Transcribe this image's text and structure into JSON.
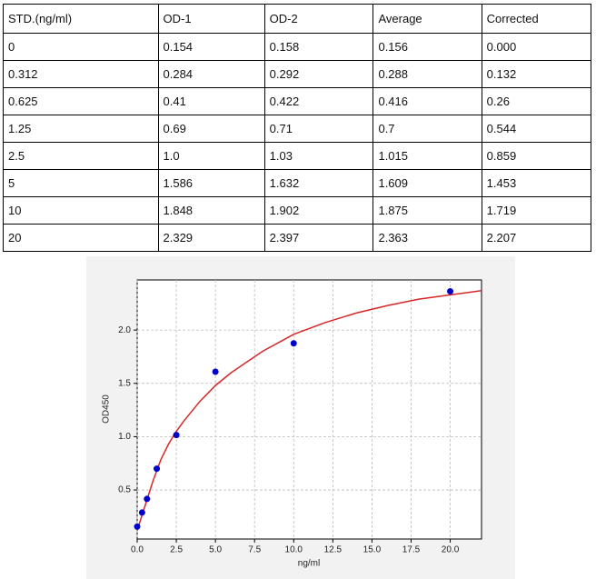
{
  "table": {
    "header": [
      "STD.(ng/ml)",
      "OD-1",
      "OD-2",
      "Average",
      "Corrected"
    ],
    "rows": [
      [
        "0",
        "0.154",
        "0.158",
        "0.156",
        "0.000"
      ],
      [
        "0.312",
        "0.284",
        "0.292",
        "0.288",
        "0.132"
      ],
      [
        "0.625",
        "0.41",
        "0.422",
        "0.416",
        "0.26"
      ],
      [
        "1.25",
        "0.69",
        "0.71",
        "0.7",
        "0.544"
      ],
      [
        "2.5",
        "1.0",
        "1.03",
        "1.015",
        "0.859"
      ],
      [
        "5",
        "1.586",
        "1.632",
        "1.609",
        "1.453"
      ],
      [
        "10",
        "1.848",
        "1.902",
        "1.875",
        "1.719"
      ],
      [
        "20",
        "2.329",
        "2.397",
        "2.363",
        "2.207"
      ]
    ]
  },
  "chart_data": {
    "type": "scatter",
    "x_label": "ng/ml",
    "y_label": "OD450",
    "xlim": [
      0,
      22
    ],
    "ylim": [
      0.04,
      2.47
    ],
    "grid": true,
    "xticks": [
      {
        "value": 0,
        "label": "0.0"
      },
      2.5,
      {
        "value": 5,
        "label": "5.0"
      },
      7.5,
      {
        "value": 10,
        "label": "10.0"
      },
      12.5,
      {
        "value": 15,
        "label": "15.0"
      },
      17.5,
      {
        "value": 20,
        "label": "20.0"
      }
    ],
    "yticks": [
      0.5,
      {
        "value": 1,
        "label": "1.0"
      },
      1.5,
      {
        "value": 2,
        "label": "2.0"
      }
    ],
    "series": [
      {
        "type": "scatter",
        "color": "#0000cc",
        "x": [
          0,
          0.312,
          0.625,
          1.25,
          2.5,
          5,
          10,
          20
        ],
        "values": [
          0.156,
          0.288,
          0.416,
          0.7,
          1.015,
          1.609,
          1.875,
          2.363
        ]
      },
      {
        "type": "line",
        "color": "#d62728",
        "x": [
          0,
          0.5,
          1,
          1.5,
          2,
          2.5,
          3,
          4,
          5,
          6,
          8,
          10,
          12,
          14,
          16,
          18,
          20,
          22
        ],
        "values": [
          0.12,
          0.35,
          0.58,
          0.78,
          0.93,
          1.05,
          1.15,
          1.33,
          1.48,
          1.6,
          1.8,
          1.96,
          2.07,
          2.16,
          2.23,
          2.29,
          2.33,
          2.37
        ]
      }
    ]
  }
}
